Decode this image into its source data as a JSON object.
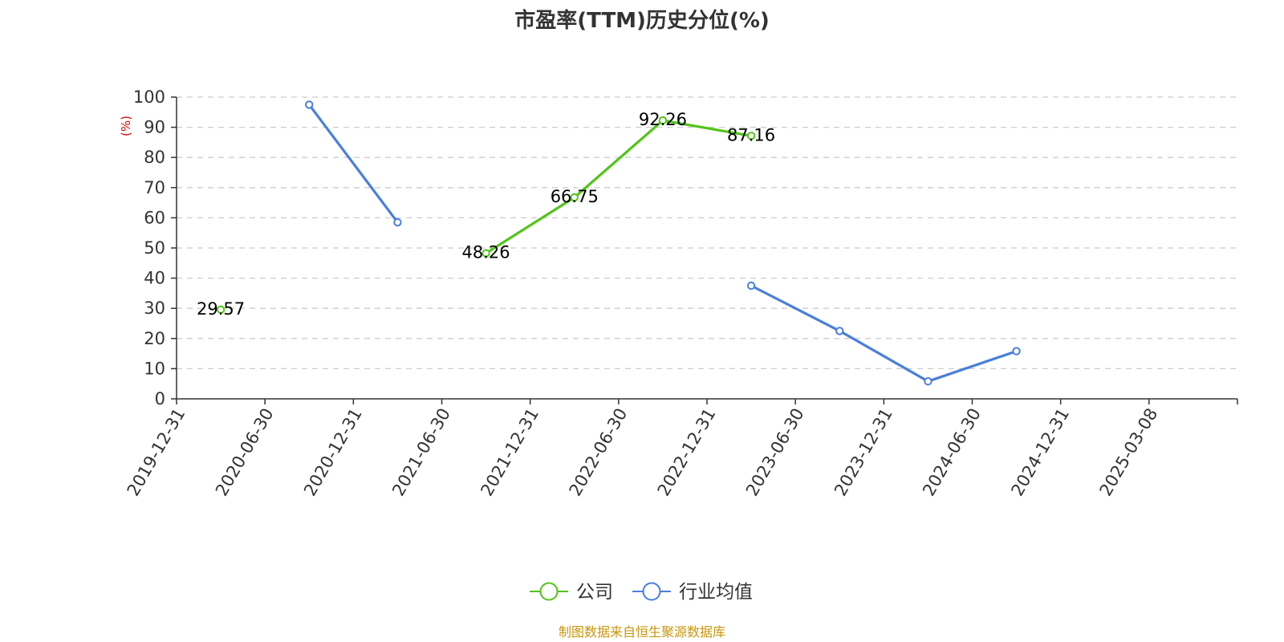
{
  "chart_data": {
    "type": "line",
    "title": "市盈率(TTM)历史分位(%)",
    "ylabel": "(%)",
    "ylim": [
      0,
      100
    ],
    "yticks": [
      0,
      10,
      20,
      30,
      40,
      50,
      60,
      70,
      80,
      90,
      100
    ],
    "grid": "horizontal-dashed",
    "legend_position": "bottom-center",
    "categories": [
      "2019-12-31",
      "2020-06-30",
      "2020-12-31",
      "2021-06-30",
      "2021-12-31",
      "2022-06-30",
      "2022-12-31",
      "2023-06-30",
      "2023-12-31",
      "2024-06-30",
      "2024-12-31",
      "2025-03-08"
    ],
    "series": [
      {
        "name": "公司",
        "color": "#52c41a",
        "show_labels": true,
        "values": [
          29.57,
          null,
          null,
          48.26,
          66.75,
          92.26,
          87.16,
          null,
          null,
          null,
          null,
          null
        ],
        "labels": [
          "29.57",
          null,
          null,
          "48.26",
          "66.75",
          "92.26",
          "87.16",
          null,
          null,
          null,
          null,
          null
        ]
      },
      {
        "name": "行业均值",
        "color": "#4a7fdb",
        "show_labels": false,
        "values": [
          null,
          97.5,
          58.5,
          null,
          null,
          null,
          37.5,
          22.5,
          5.8,
          15.8,
          null,
          null
        ]
      }
    ],
    "source": "制图数据来自恒生聚源数据库",
    "colors": {
      "axis": "#333333",
      "grid": "#cccccc",
      "ylabel": "#e00000",
      "source": "#c8960c"
    }
  }
}
